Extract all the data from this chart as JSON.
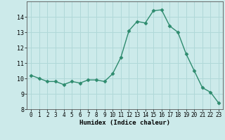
{
  "x": [
    0,
    1,
    2,
    3,
    4,
    5,
    6,
    7,
    8,
    9,
    10,
    11,
    12,
    13,
    14,
    15,
    16,
    17,
    18,
    19,
    20,
    21,
    22,
    23
  ],
  "y": [
    10.2,
    10.0,
    9.8,
    9.8,
    9.6,
    9.8,
    9.7,
    9.9,
    9.9,
    9.8,
    10.3,
    11.35,
    13.1,
    13.7,
    13.6,
    14.4,
    14.45,
    13.4,
    13.0,
    11.6,
    10.5,
    9.4,
    9.1,
    8.4
  ],
  "line_color": "#2e8b6e",
  "marker": "D",
  "marker_size": 2.5,
  "bg_color": "#cceaea",
  "grid_color": "#b0d8d8",
  "xlabel": "Humidex (Indice chaleur)",
  "ylim": [
    8,
    15
  ],
  "xlim": [
    -0.5,
    23.5
  ],
  "yticks": [
    8,
    9,
    10,
    11,
    12,
    13,
    14
  ],
  "xticks": [
    0,
    1,
    2,
    3,
    4,
    5,
    6,
    7,
    8,
    9,
    10,
    11,
    12,
    13,
    14,
    15,
    16,
    17,
    18,
    19,
    20,
    21,
    22,
    23
  ]
}
